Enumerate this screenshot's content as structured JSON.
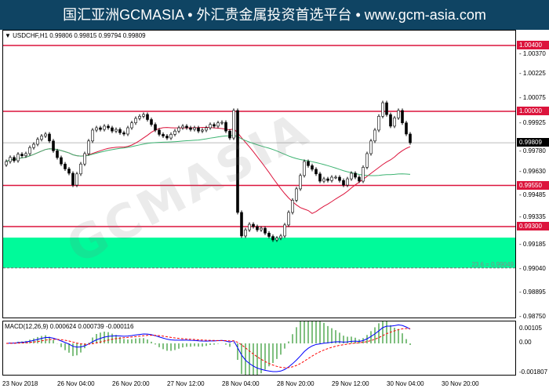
{
  "header": {
    "title": "国汇亚洲GCMASIA • 外汇贵金属投资首选平台 • www.gcm-asia.com"
  },
  "chart": {
    "symbol_info": "USDCHF,H1  0.99806 0.99815 0.99794 0.99809",
    "watermark": "GCMASIA",
    "type": "candlestick",
    "price_axis": [
      "1.00370",
      "1.00225",
      "1.00075",
      "0.99925",
      "0.99780",
      "0.99630",
      "0.99485",
      "0.99335",
      "0.99185",
      "0.99040",
      "0.98895",
      "0.98750"
    ],
    "levels": [
      {
        "label": "1.00400",
        "price": 1.004
      },
      {
        "label": "1.00000",
        "price": 1.0
      },
      {
        "label": "0.99550",
        "price": 0.9955
      },
      {
        "label": "0.99300",
        "price": 0.993
      }
    ],
    "current": {
      "label": "0.99809",
      "price": 0.99809
    },
    "zone": {
      "top": 0.99233,
      "bottom": 0.99049,
      "color": "#00fa9a"
    },
    "fib_label": "23.6 = 0.99049",
    "colors": {
      "level": "#dc143c",
      "ma_fast": "#dc143c",
      "ma_slow": "#3cb371",
      "candle": "#000000"
    },
    "closes": [
      0.99695,
      0.9972,
      0.997,
      0.9974,
      0.9973,
      0.99743,
      0.9978,
      0.998,
      0.9983,
      0.9985,
      0.99862,
      0.9982,
      0.9976,
      0.99719,
      0.9968,
      0.9965,
      0.99624,
      0.99552,
      0.9962,
      0.9968,
      0.99743,
      0.9982,
      0.99886,
      0.999,
      0.9989,
      0.9991,
      0.999,
      0.9988,
      0.9989,
      0.9987,
      0.99862,
      0.999,
      0.9993,
      0.99957,
      0.9997,
      0.99981,
      0.9995,
      0.9992,
      0.99886,
      0.9986,
      0.9985,
      0.99838,
      0.9986,
      0.9988,
      0.999,
      0.9991,
      0.999,
      0.9989,
      0.999,
      0.9988,
      0.99886,
      0.999,
      0.9992,
      0.9991,
      0.9993,
      0.99933,
      0.9988,
      0.99838,
      1.00005,
      0.99386,
      0.99243,
      0.9928,
      0.99314,
      0.993,
      0.9928,
      0.9929,
      0.9926,
      0.9924,
      0.99219,
      0.9923,
      0.99243,
      0.9931,
      0.99386,
      0.9946,
      0.99529,
      0.9961,
      0.99695,
      0.9967,
      0.99648,
      0.9962,
      0.99576,
      0.9959,
      0.9958,
      0.996,
      0.996,
      0.9958,
      0.99552,
      0.9959,
      0.99624,
      0.996,
      0.99576,
      0.9966,
      0.99743,
      0.9982,
      0.99886,
      0.9997,
      1.00052,
      0.9998,
      0.9991,
      0.9996,
      1.00005,
      0.9993,
      0.99862,
      0.99809
    ]
  },
  "macd": {
    "label": "MACD(12,26,9) 0.000624 0.000739 -0.000116",
    "axis": [
      "0.00105",
      "0.00",
      "-0.001807"
    ],
    "colors": {
      "main": "#0000ff",
      "signal": "#ff0000",
      "hist": "#008000"
    }
  },
  "time_axis": [
    "23 Nov 2018",
    "26 Nov 04:00",
    "26 Nov 20:00",
    "27 Nov 12:00",
    "28 Nov 04:00",
    "28 Nov 20:00",
    "29 Nov 12:00",
    "30 Nov 04:00",
    "30 Nov 20:00"
  ]
}
